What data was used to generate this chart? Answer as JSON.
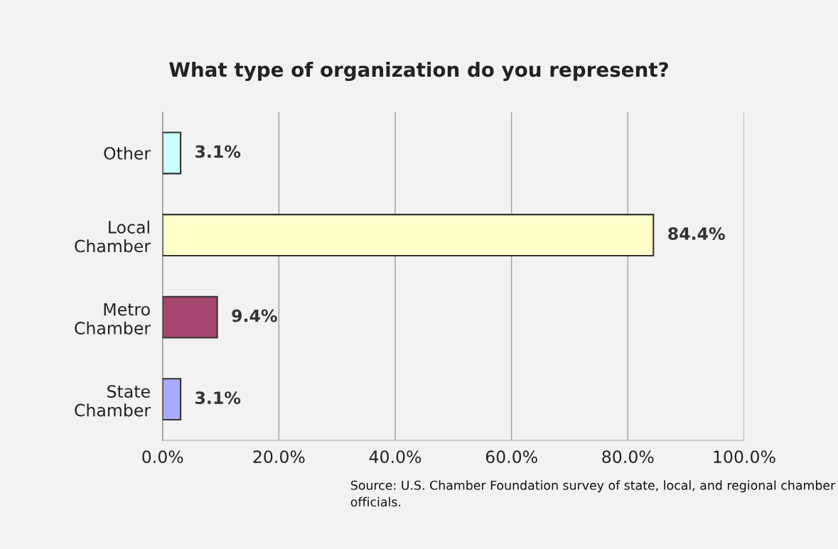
{
  "chart_data": {
    "type": "bar",
    "orientation": "horizontal",
    "title": "What type of organization do you represent?",
    "categories": [
      "Other",
      "Local\nChamber",
      "Metro\nChamber",
      "State\nChamber"
    ],
    "values": [
      3.1,
      84.4,
      9.4,
      3.1
    ],
    "colors": [
      "#ccffff",
      "#ffffcc",
      "#a5466f",
      "#a9a9ff"
    ],
    "value_labels": [
      "3.1%",
      "84.4%",
      "9.4%",
      "3.1%"
    ],
    "xlim": [
      0,
      100
    ],
    "xticks": [
      {
        "value": 0,
        "label": "0.0%"
      },
      {
        "value": 20,
        "label": "20.0%"
      },
      {
        "value": 40,
        "label": "40.0%"
      },
      {
        "value": 60,
        "label": "60.0%"
      },
      {
        "value": 80,
        "label": "80.0%"
      },
      {
        "value": 100,
        "label": "100.0%"
      }
    ],
    "grid": "x",
    "legend": false,
    "annotations": [
      "Source: U.S. Chamber Foundation survey of state, local, and regional chamber officials."
    ]
  }
}
